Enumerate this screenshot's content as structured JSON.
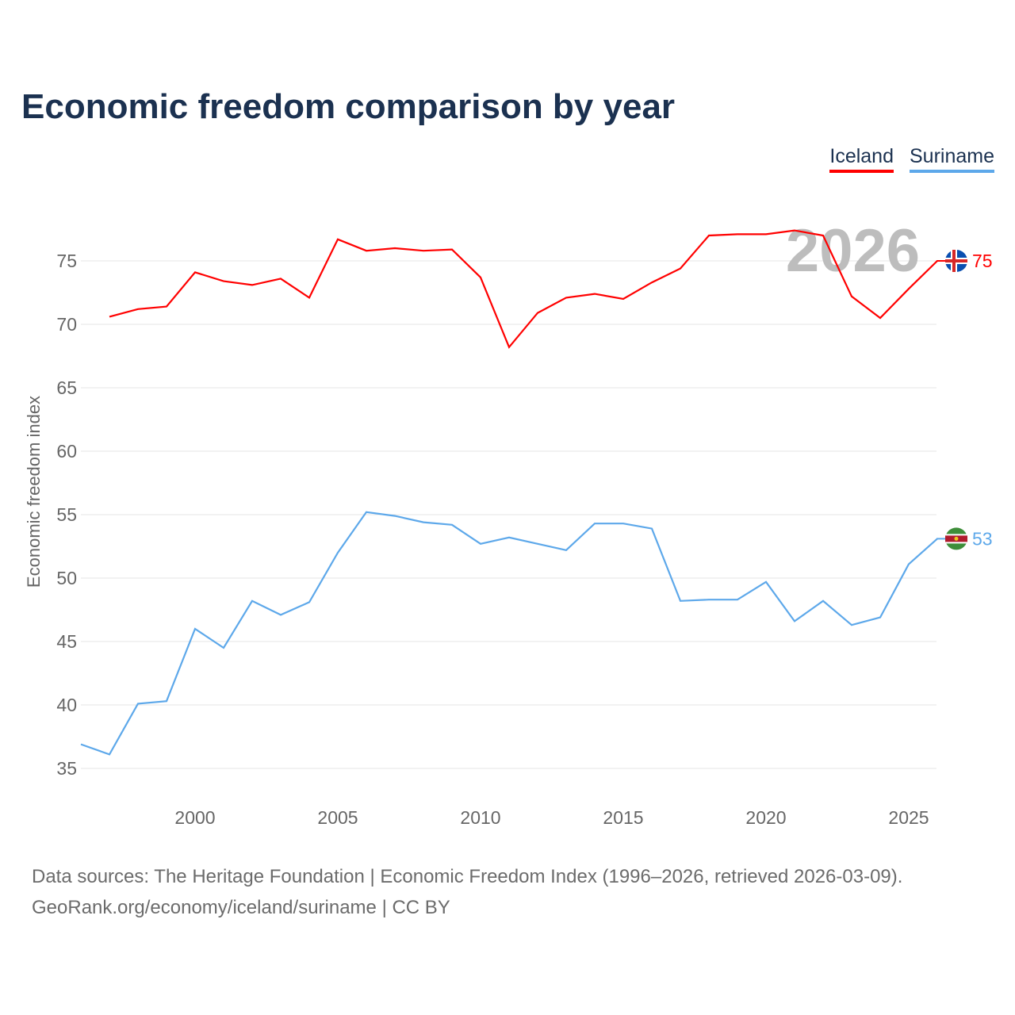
{
  "title": "Economic freedom comparison by year",
  "legend": [
    {
      "label": "Iceland",
      "color": "#ff0000"
    },
    {
      "label": "Suriname",
      "color": "#5da8ea"
    }
  ],
  "footer": {
    "line1": "Data sources: The Heritage Foundation | Economic Freedom Index (1996–2026, retrieved 2026-03-09).",
    "line2": "GeoRank.org/economy/iceland/suriname | CC BY"
  },
  "chart_data": {
    "type": "line",
    "title": "Economic freedom comparison by year",
    "ylabel": "Economic freedom index",
    "xlabel": "",
    "xlim": [
      1996,
      2026
    ],
    "ylim": [
      32,
      80
    ],
    "yticks": [
      35,
      40,
      45,
      50,
      55,
      60,
      65,
      70,
      75
    ],
    "xticks": [
      2000,
      2005,
      2010,
      2015,
      2020,
      2025
    ],
    "grid": true,
    "year_watermark": "2026",
    "series": [
      {
        "name": "Iceland",
        "color": "#ff0000",
        "end_label": "75",
        "x": [
          1997,
          1998,
          1999,
          2000,
          2001,
          2002,
          2003,
          2004,
          2005,
          2006,
          2007,
          2008,
          2009,
          2010,
          2011,
          2012,
          2013,
          2014,
          2015,
          2016,
          2017,
          2018,
          2019,
          2020,
          2021,
          2022,
          2023,
          2024,
          2025,
          2026
        ],
        "values": [
          70.6,
          71.2,
          71.4,
          74.1,
          73.4,
          73.1,
          73.6,
          72.1,
          76.7,
          75.8,
          76.0,
          75.8,
          75.9,
          73.7,
          68.2,
          70.9,
          72.1,
          72.4,
          72.0,
          73.3,
          74.4,
          77.0,
          77.1,
          77.1,
          77.4,
          77.0,
          72.2,
          70.5,
          72.8,
          75.0
        ]
      },
      {
        "name": "Suriname",
        "color": "#5da8ea",
        "end_label": "53",
        "x": [
          1996,
          1997,
          1998,
          1999,
          2000,
          2001,
          2002,
          2003,
          2004,
          2005,
          2006,
          2007,
          2008,
          2009,
          2010,
          2011,
          2012,
          2013,
          2014,
          2015,
          2016,
          2017,
          2018,
          2019,
          2020,
          2021,
          2022,
          2023,
          2024,
          2025,
          2026
        ],
        "values": [
          36.9,
          36.1,
          40.1,
          40.3,
          46.0,
          44.5,
          48.2,
          47.1,
          48.1,
          52.0,
          55.2,
          54.9,
          54.4,
          54.2,
          52.7,
          53.2,
          52.7,
          52.2,
          54.3,
          54.3,
          53.9,
          48.2,
          48.3,
          48.3,
          49.7,
          46.6,
          48.2,
          46.3,
          46.9,
          51.1,
          53.1
        ]
      }
    ]
  }
}
